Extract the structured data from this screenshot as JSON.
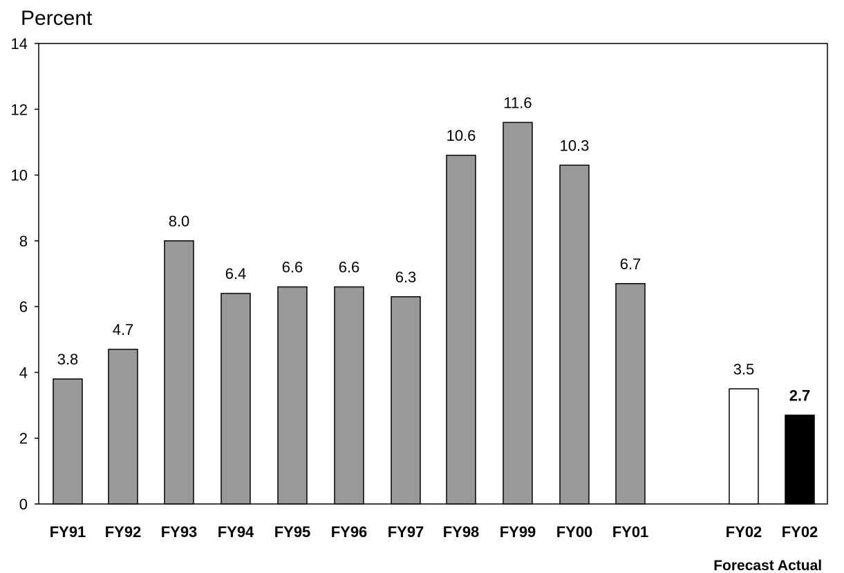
{
  "chart_data": {
    "type": "bar",
    "title": "",
    "ylabel": "Percent",
    "xlabel": "",
    "ylim": [
      0,
      14
    ],
    "yticks": [
      "0",
      "2",
      "4",
      "6",
      "8",
      "10",
      "12",
      "14"
    ],
    "grid": false,
    "categories": [
      "FY91",
      "FY92",
      "FY93",
      "FY94",
      "FY95",
      "FY96",
      "FY97",
      "FY98",
      "FY99",
      "FY00",
      "FY01",
      "FY02",
      "FY02"
    ],
    "category_sublabels": [
      "",
      "",
      "",
      "",
      "",
      "",
      "",
      "",
      "",
      "",
      "",
      "Forecast",
      "Actual"
    ],
    "values": [
      3.8,
      4.7,
      8.0,
      6.4,
      6.6,
      6.6,
      6.3,
      10.6,
      11.6,
      10.3,
      6.7,
      3.5,
      2.7
    ],
    "value_labels": [
      "3.8",
      "4.7",
      "8.0",
      "6.4",
      "6.6",
      "6.6",
      "6.3",
      "10.6",
      "11.6",
      "10.3",
      "6.7",
      "3.5",
      "2.7"
    ],
    "bar_colors": [
      "#999999",
      "#999999",
      "#999999",
      "#999999",
      "#999999",
      "#999999",
      "#999999",
      "#999999",
      "#999999",
      "#999999",
      "#999999",
      "#ffffff",
      "#000000"
    ],
    "bold_value_labels": [
      false,
      false,
      false,
      false,
      false,
      false,
      false,
      false,
      false,
      false,
      false,
      false,
      true
    ]
  }
}
